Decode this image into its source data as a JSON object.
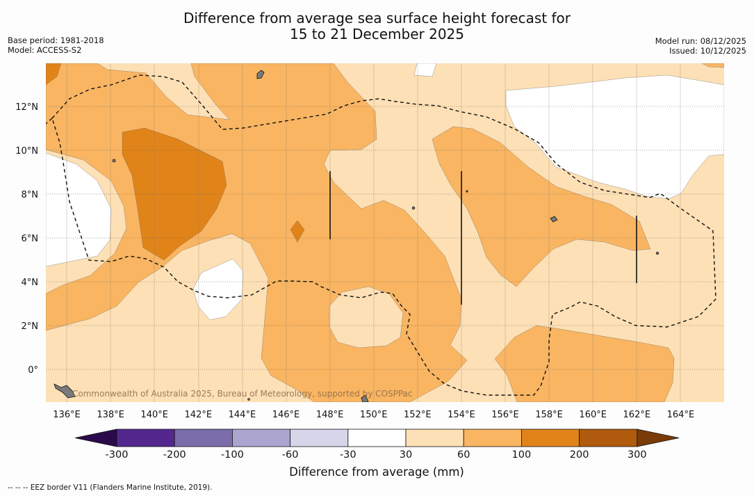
{
  "title": {
    "line1": "Difference from average sea surface height forecast for",
    "line2": "15 to 21 December 2025"
  },
  "meta": {
    "base_period": "Base period: 1981-2018",
    "model": "Model: ACCESS-S2",
    "model_run": "Model run: 08/12/2025",
    "issued": "Issued: 10/12/2025"
  },
  "map": {
    "lon_labels": [
      "136°E",
      "138°E",
      "140°E",
      "142°E",
      "144°E",
      "146°E",
      "148°E",
      "150°E",
      "152°E",
      "154°E",
      "156°E",
      "158°E",
      "160°E",
      "162°E",
      "164°E"
    ],
    "lat_labels": [
      "12°N",
      "10°N",
      "8°N",
      "6°N",
      "4°N",
      "2°N",
      "0°"
    ],
    "watermark": "Commonwealth of Australia 2025, Bureau of Meteorology, supported by COSPPac"
  },
  "colorbar": {
    "tick_labels": [
      "-300",
      "-200",
      "-100",
      "-60",
      "-30",
      "30",
      "60",
      "100",
      "200",
      "300"
    ],
    "label": "Difference from average (mm)",
    "colors": {
      "lt_-300": "#2b0a4c",
      "-300_-200": "#54278f",
      "-200_-100": "#7b6dab",
      "-100_-60": "#aba5d0",
      "-60_-30": "#d5d6ea",
      "-30_30": "#ffffff",
      "30_60": "#fde0b5",
      "60_100": "#f9b562",
      "100_200": "#e0841a",
      "200_300": "#b05b0d",
      "gt_300": "#7a3b08"
    }
  },
  "footer": {
    "legend": "--  --  -- EEZ border V11 (Flanders Marine Institute, 2019)."
  }
}
